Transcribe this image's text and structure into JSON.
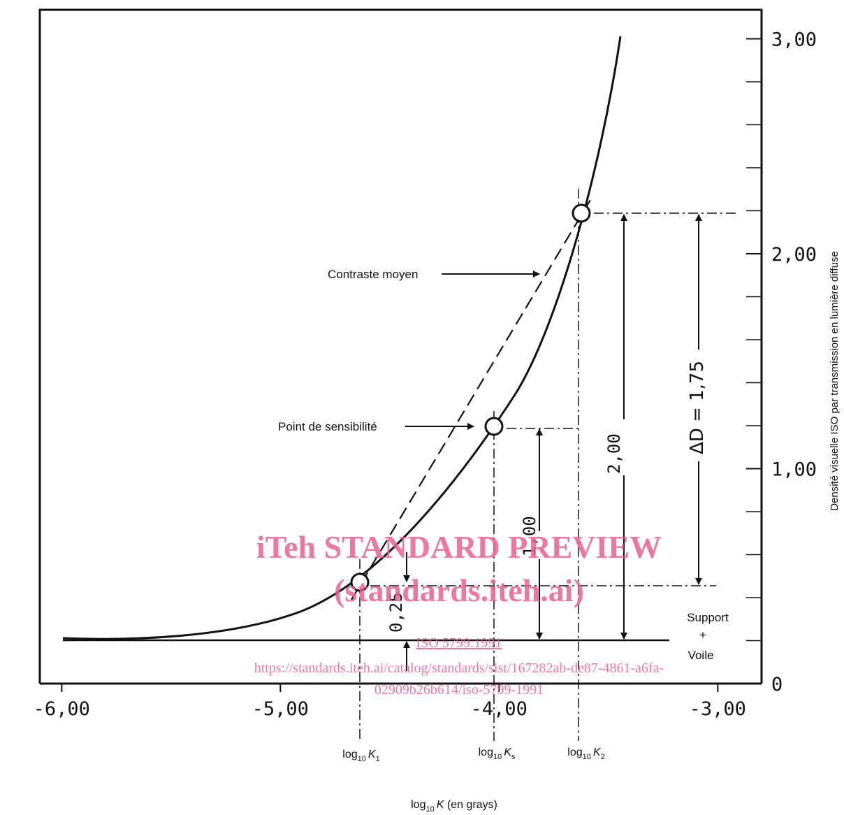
{
  "chart_data": {
    "type": "line",
    "xlabel": "log",
    "xlabel_sub": "10",
    "xlabel_var": "K",
    "xlabel_unit": " (en grays)",
    "ylabel": "Densité visuelle ISO par transmission en lumière diffuse",
    "xlim": [
      -6.1,
      -2.8
    ],
    "ylim": [
      0,
      3.1
    ],
    "x_ticks": [
      {
        "value": -6.0,
        "label": "-6,00"
      },
      {
        "value": -5.0,
        "label": "-5,00"
      },
      {
        "value": -4.0,
        "label": "-4,00"
      },
      {
        "value": -3.0,
        "label": "-3,00"
      }
    ],
    "y_ticks": [
      {
        "value": 0,
        "label": "0"
      },
      {
        "value": 1.0,
        "label": "1,00"
      },
      {
        "value": 2.0,
        "label": "2,00"
      },
      {
        "value": 3.0,
        "label": "3,00"
      }
    ],
    "y_minor_ticks": [
      0.2,
      0.4,
      0.6,
      0.8,
      1.2,
      1.4,
      1.6,
      1.8,
      2.2,
      2.4,
      2.6,
      2.8
    ],
    "series": [
      {
        "style": "solid",
        "x": [
          -5.9,
          -5.5,
          -5.0,
          -4.8,
          -4.6,
          -4.4,
          -4.2,
          -4.0,
          -3.9,
          -3.8,
          -3.7,
          -3.6,
          -3.5,
          -3.45,
          -3.4,
          -3.3
        ],
        "y": [
          0.2,
          0.2,
          0.25,
          0.3,
          0.38,
          0.48,
          0.67,
          0.95,
          1.17,
          1.4,
          1.73,
          2.17,
          2.65,
          2.9,
          3.05,
          3.3
        ]
      }
    ],
    "points": [
      {
        "x": -4.58,
        "y": 0.45,
        "label_main": "log",
        "label_sub": "10",
        "label_var": "K",
        "label_varsub": "1"
      },
      {
        "x": -3.95,
        "y": 1.2,
        "label_main": "log",
        "label_sub": "10",
        "label_var": "K",
        "label_varsub": "s"
      },
      {
        "x": -3.56,
        "y": 2.2,
        "label_main": "log",
        "label_sub": "10",
        "label_var": "K",
        "label_varsub": "2"
      }
    ],
    "annotations": {
      "contrast_label": "Contraste moyen",
      "sensitivity_label": "Point de sensibilité",
      "base_label_1": "Support",
      "base_label_2": "+",
      "base_label_3": "Voile",
      "dim_025": "0,25",
      "dim_100": "1,00",
      "dim_200": "2,00",
      "delta_d": "ΔD = 1,75"
    }
  },
  "watermark": {
    "line1": "iTeh STANDARD PREVIEW",
    "line2": "(standards.iteh.ai)",
    "line3": "ISO 5799:1991",
    "line4": "https://standards.iteh.ai/catalog/standards/sist/167282ab-de87-4861-a6fa-",
    "line5": "02909b26b614/iso-5799-1991"
  }
}
